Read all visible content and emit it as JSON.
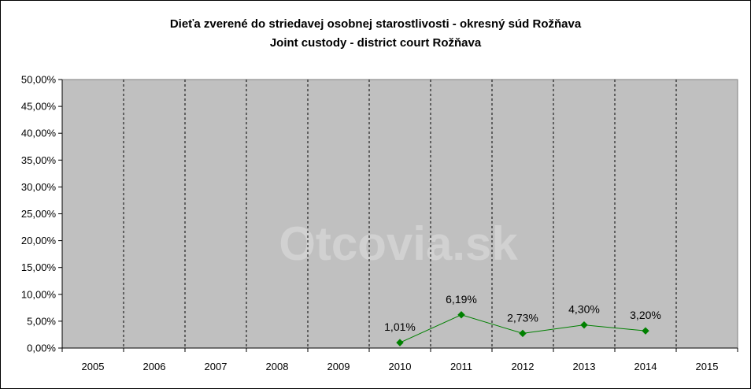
{
  "chart_data": {
    "type": "line",
    "title": "Dieťa zverené do striedavej osobnej starostlivosti - okresný súd Rožňava",
    "subtitle": "Joint custody - district court Rožňava",
    "watermark": "Otcovia.sk",
    "categories": [
      "2005",
      "2006",
      "2007",
      "2008",
      "2009",
      "2010",
      "2011",
      "2012",
      "2013",
      "2014",
      "2015"
    ],
    "series": [
      {
        "values": [
          null,
          null,
          null,
          null,
          null,
          1.01,
          6.19,
          2.73,
          4.3,
          3.2,
          null
        ],
        "labels": [
          null,
          null,
          null,
          null,
          null,
          "1,01%",
          "6,19%",
          "2,73%",
          "4,30%",
          "3,20%",
          null
        ],
        "color": "#008000"
      }
    ],
    "ylim": [
      0,
      50
    ],
    "yticks": [
      0,
      5,
      10,
      15,
      20,
      25,
      30,
      35,
      40,
      45,
      50
    ],
    "ytick_labels": [
      "0,00%",
      "5,00%",
      "10,00%",
      "15,00%",
      "20,00%",
      "25,00%",
      "30,00%",
      "35,00%",
      "40,00%",
      "45,00%",
      "50,00%"
    ],
    "plot_background": "#c0c0c0",
    "gridlines": "vertical-dashed",
    "legend": "none"
  }
}
